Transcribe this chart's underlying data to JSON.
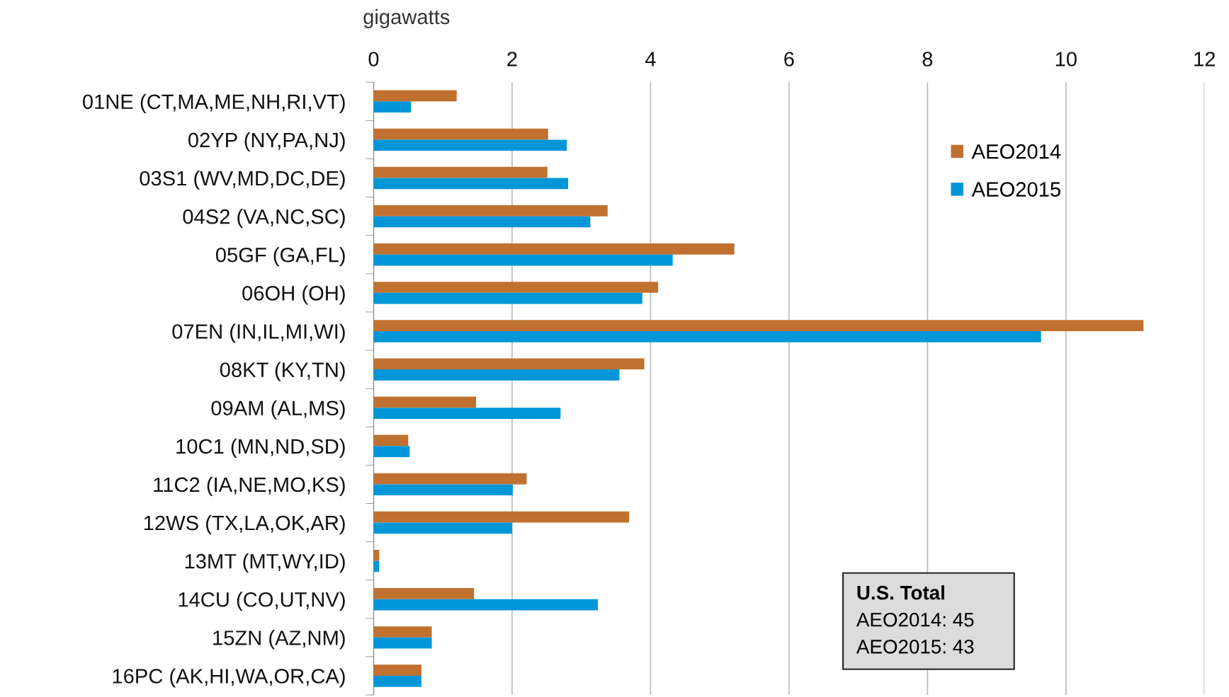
{
  "chart_data": {
    "type": "bar",
    "orientation": "horizontal",
    "xlabel": "gigawatts",
    "categories": [
      "01NE (CT,MA,ME,NH,RI,VT)",
      "02YP (NY,PA,NJ)",
      "03S1 (WV,MD,DC,DE)",
      "04S2 (VA,NC,SC)",
      "05GF (GA,FL)",
      "06OH (OH)",
      "07EN (IN,IL,MI,WI)",
      "08KT (KY,TN)",
      "09AM (AL,MS)",
      "10C1 (MN,ND,SD)",
      "11C2 (IA,NE,MO,KS)",
      "12WS (TX,LA,OK,AR)",
      "13MT (MT,WY,ID)",
      "14CU (CO,UT,NV)",
      "15ZN (AZ,NM)",
      "16PC (AK,HI,WA,OR,CA)"
    ],
    "series": [
      {
        "name": "AEO2014",
        "color": "#c0712f",
        "values": [
          1.2,
          2.52,
          2.51,
          3.38,
          5.21,
          4.11,
          11.12,
          3.91,
          1.48,
          0.5,
          2.21,
          3.69,
          0.08,
          1.45,
          0.84,
          0.69
        ]
      },
      {
        "name": "AEO2015",
        "color": "#0096d7",
        "values": [
          0.54,
          2.79,
          2.81,
          3.13,
          4.32,
          3.88,
          9.64,
          3.55,
          2.7,
          0.52,
          2.01,
          2.0,
          0.08,
          3.24,
          0.84,
          0.69
        ]
      }
    ],
    "xlim": [
      0,
      12
    ],
    "xticks": [
      0,
      2,
      4,
      6,
      8,
      10,
      12
    ],
    "grid": "x",
    "legend": "top right",
    "annotations": [
      "U.S. Total",
      "AEO2014: 45",
      "AEO2015: 43"
    ]
  }
}
